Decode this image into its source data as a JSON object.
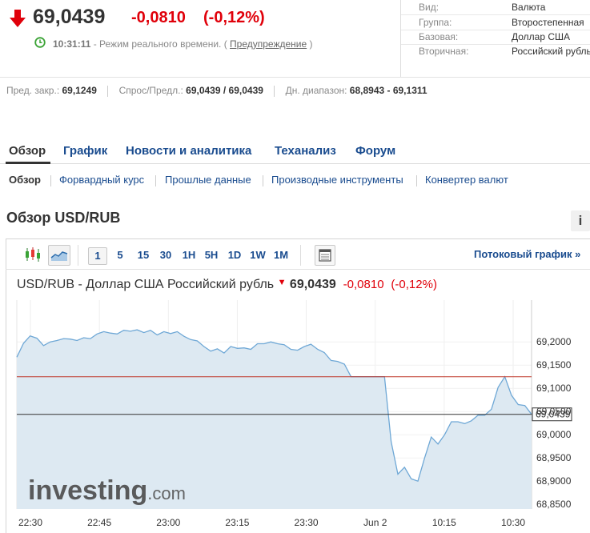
{
  "quote": {
    "last": "69,0439",
    "change": "-0,0810",
    "change_pct": "(-0,12%)",
    "time": "10:31:11",
    "mode_text": " - Режим реального времени. ( ",
    "warning_link": "Предупреждение",
    "close_paren": " )"
  },
  "info": [
    {
      "key": "Вид:",
      "value": "Валюта"
    },
    {
      "key": "Группа:",
      "value": "Второстепенная"
    },
    {
      "key": "Базовая:",
      "value": "Доллар США"
    },
    {
      "key": "Вторичная:",
      "value": "Российский рубль"
    }
  ],
  "stats": {
    "prev_close_label": "Пред. закр.:",
    "prev_close": "69,1249",
    "bid_ask_label": "Спрос/Предл.:",
    "bid_ask": "69,0439 / 69,0439",
    "day_range_label": "Дн. диапазон:",
    "day_range": "68,8943 - 69,1311"
  },
  "main_tabs": [
    "Обзор",
    "График",
    "Новости и аналитика",
    "Теханализ",
    "Форум"
  ],
  "sub_tabs": [
    "Обзор",
    "Форвардный курс",
    "Прошлые данные",
    "Производные инструменты",
    "Конвертер валют"
  ],
  "section_title": "Обзор USD/RUB",
  "info_button": "i",
  "toolbar": {
    "intervals": [
      "1",
      "5",
      "15",
      "30",
      "1H",
      "5H",
      "1D",
      "1W",
      "1M"
    ],
    "active_interval": "1",
    "streaming_label": "Потоковый график »"
  },
  "chart_heading": {
    "title": "USD/RUB - Доллар США Российский рубль",
    "price": "69,0439",
    "change": "-0,0810",
    "change_pct": "(-0,12%)"
  },
  "watermark": "investing.com",
  "colors": {
    "up_down_red": "#e0000a",
    "link_blue": "#1a4c8f",
    "line_blue": "#6fa8d6",
    "area_fill": "#dde9f2",
    "prev_close_line": "#c0392b"
  },
  "chart_data": {
    "type": "area",
    "x_ticks": [
      "22:30",
      "22:45",
      "23:00",
      "23:15",
      "23:30",
      "Jun 2",
      "10:15",
      "10:30"
    ],
    "y_ticks": [
      "69,2000",
      "69,1500",
      "69,1000",
      "69,0500",
      "69,0000",
      "68,9500",
      "68,9000",
      "68,8500"
    ],
    "ylim": [
      68.84,
      69.29
    ],
    "last_value_label": "69,0439",
    "last_value": 69.0439,
    "prev_close": 69.1249,
    "values": [
      69.167,
      69.197,
      69.213,
      69.208,
      69.192,
      69.2,
      69.203,
      69.207,
      69.206,
      69.203,
      69.209,
      69.207,
      69.217,
      69.222,
      69.219,
      69.217,
      69.225,
      69.223,
      69.226,
      69.22,
      69.225,
      69.215,
      69.222,
      69.218,
      69.222,
      69.212,
      69.205,
      69.202,
      69.19,
      69.18,
      69.185,
      69.176,
      69.19,
      69.186,
      69.187,
      69.184,
      69.196,
      69.196,
      69.2,
      69.196,
      69.194,
      69.184,
      69.182,
      69.19,
      69.195,
      69.184,
      69.177,
      69.16,
      69.158,
      69.152,
      69.125,
      69.125,
      69.125,
      69.125,
      69.125,
      69.125,
      68.985,
      68.915,
      68.93,
      68.905,
      68.9,
      68.95,
      68.995,
      68.98,
      69.0,
      69.028,
      69.028,
      69.024,
      69.03,
      69.042,
      69.042,
      69.055,
      69.102,
      69.125,
      69.085,
      69.065,
      69.063,
      69.0439
    ]
  }
}
